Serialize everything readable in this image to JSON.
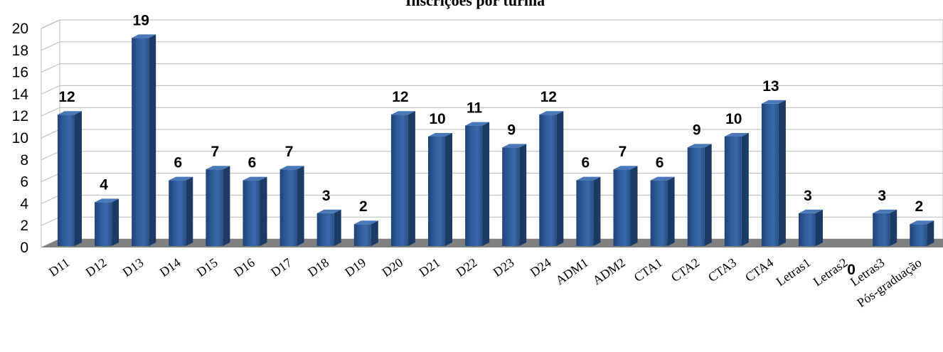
{
  "chart_data": {
    "type": "bar",
    "title": "Inscrições por turma",
    "categories": [
      "D11",
      "D12",
      "D13",
      "D14",
      "D15",
      "D16",
      "D17",
      "D18",
      "D19",
      "D20",
      "D21",
      "D22",
      "D23",
      "D24",
      "ADM1",
      "ADM2",
      "CTA1",
      "CTA2",
      "CTA3",
      "CTA4",
      "Letras1",
      "Letras2",
      "Letras3",
      "Pós-graduação"
    ],
    "values": [
      12,
      4,
      19,
      6,
      7,
      6,
      7,
      3,
      2,
      12,
      10,
      11,
      9,
      12,
      6,
      7,
      6,
      9,
      10,
      13,
      3,
      0,
      3,
      2
    ],
    "ylim": [
      0,
      20
    ],
    "yticks": [
      0,
      2,
      4,
      6,
      8,
      10,
      12,
      14,
      16,
      18,
      20
    ],
    "xlabel": "",
    "ylabel": "",
    "grid": true,
    "data_labels": true,
    "style": "3d-cylinder-bars",
    "colors": {
      "bar": "#2e5b9a",
      "bar_dark": "#1c3a66",
      "bar_top": "#4a78b8",
      "floor": "#808080",
      "grid": "#b8b8b8"
    }
  }
}
